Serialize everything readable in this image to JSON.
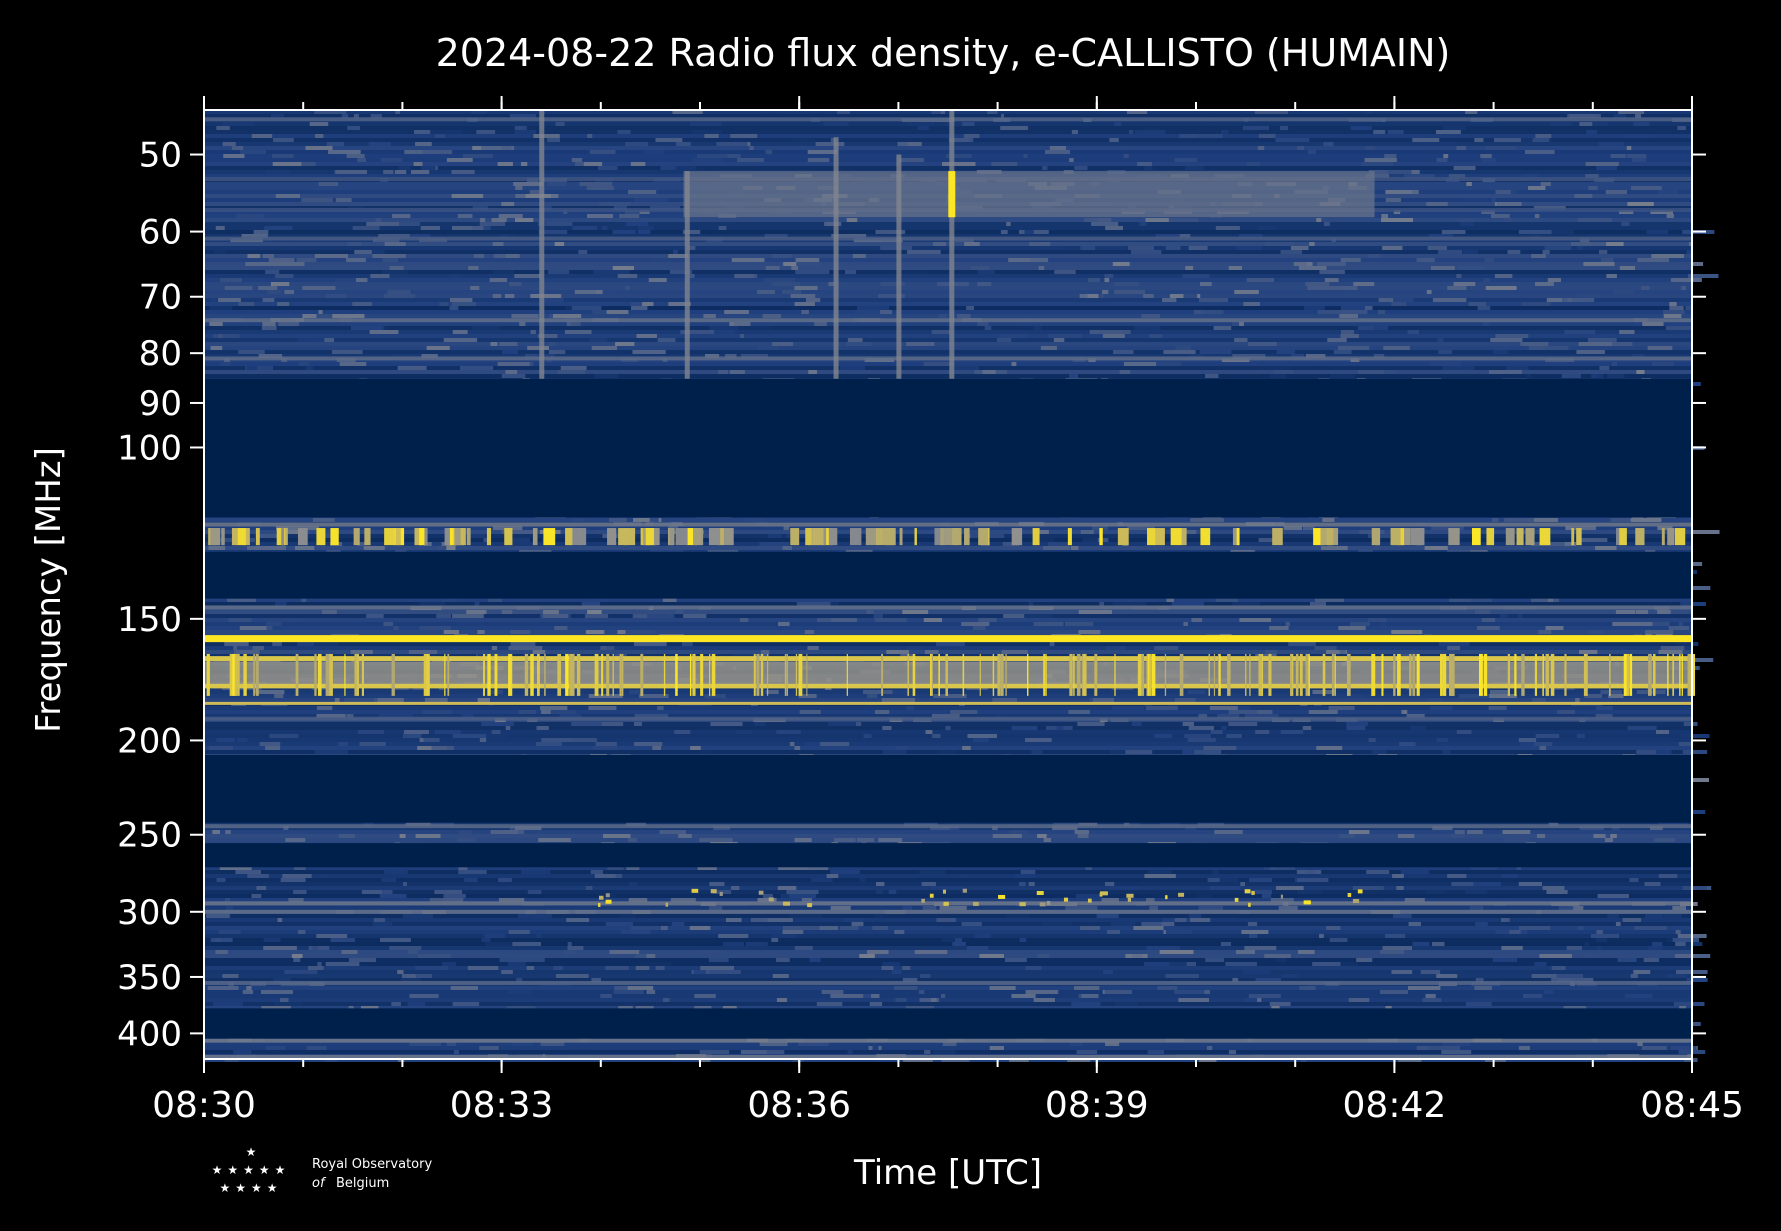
{
  "chart_data": {
    "type": "heatmap",
    "title": "2024-08-22 Radio flux density, e-CALLISTO (HUMAIN)",
    "xlabel": "Time [UTC]",
    "ylabel": "Frequency [MHz]",
    "x_ticks": [
      "08:30",
      "08:33",
      "08:36",
      "08:39",
      "08:42",
      "08:45"
    ],
    "x_range": [
      "08:30",
      "08:45"
    ],
    "x_minor_step_seconds": 60,
    "y_ticks": [
      50,
      60,
      70,
      80,
      90,
      100,
      150,
      200,
      250,
      300,
      350,
      400
    ],
    "y_range": [
      45,
      425
    ],
    "y_scale": "log",
    "colormap": [
      "#00204c",
      "#1f3f7e",
      "#5b6a89",
      "#8f8f8f",
      "#cdbb58",
      "#fde725"
    ],
    "background": "#000000",
    "foreground": "#ffffff",
    "no_data_color": "#00204c",
    "blank_frequency_bands": [
      [
        85,
        118
      ],
      [
        128,
        143
      ],
      [
        207,
        243
      ],
      [
        255,
        270
      ],
      [
        377,
        405
      ]
    ],
    "strong_rfi_bands_mhz": [
      157,
      165,
      176
    ],
    "bursts": [
      {
        "time": "08:33:24",
        "f_low": 45,
        "f_high": 85
      },
      {
        "time": "08:34:52",
        "f_low": 52,
        "f_high": 85
      },
      {
        "time": "08:36:22",
        "f_low": 48,
        "f_high": 85
      },
      {
        "time": "08:37:00",
        "f_low": 50,
        "f_high": 85
      },
      {
        "time": "08:37:32",
        "f_low": 45,
        "f_high": 85,
        "peak_mhz": 55
      }
    ],
    "continuum_patch": {
      "t_start": "08:34:50",
      "t_end": "08:41:48",
      "f_low": 52,
      "f_high": 58
    }
  },
  "logo": {
    "line1": "Royal Observatory",
    "line2_italic": "of",
    "line2_rest": "Belgium"
  }
}
